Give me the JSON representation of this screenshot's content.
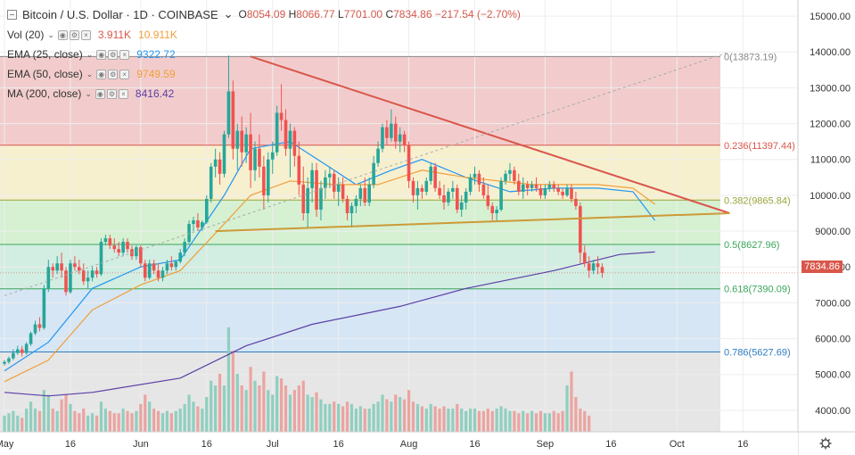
{
  "header": {
    "symbol": "Bitcoin / U.S. Dollar · 1D · COINBASE",
    "open_label": "O",
    "open": "8054.09",
    "high_label": "H",
    "high": "8066.77",
    "low_label": "L",
    "low": "7701.00",
    "close_label": "C",
    "close": "7834.86",
    "change": "−217.54 (−2.70%)"
  },
  "indicators": [
    {
      "name": "Vol (20)",
      "values": [
        "3.911K",
        "10.911K"
      ],
      "colors": [
        "#d9564a",
        "#f29e38"
      ]
    },
    {
      "name": "EMA (25, close)",
      "values": [
        "9322.72"
      ],
      "colors": [
        "#2196f3"
      ]
    },
    {
      "name": "EMA (50, close)",
      "values": [
        "9749.59"
      ],
      "colors": [
        "#f29e38"
      ]
    },
    {
      "name": "MA (200, close)",
      "values": [
        "8416.42"
      ],
      "colors": [
        "#5b3fa6"
      ]
    }
  ],
  "last_price": "7834.86",
  "chart_data": {
    "type": "candlestick",
    "price_axis_ticks": [
      "15000.00",
      "14000.00",
      "13000.00",
      "12000.00",
      "11000.00",
      "10000.00",
      "9000.00",
      "8000.00",
      "7000.00",
      "6000.00",
      "5000.00",
      "4000.00"
    ],
    "ylim": [
      3400,
      15450
    ],
    "time_axis_ticks": [
      {
        "label": "May",
        "day": 0
      },
      {
        "label": "16",
        "day": 15
      },
      {
        "label": "Jun",
        "day": 31
      },
      {
        "label": "16",
        "day": 46
      },
      {
        "label": "Jul",
        "day": 61
      },
      {
        "label": "16",
        "day": 76
      },
      {
        "label": "Aug",
        "day": 92
      },
      {
        "label": "16",
        "day": 107
      },
      {
        "label": "Sep",
        "day": 123
      },
      {
        "label": "16",
        "day": 138
      },
      {
        "label": "Oct",
        "day": 153
      },
      {
        "label": "16",
        "day": 168
      }
    ],
    "fib_levels": [
      {
        "ratio": "0",
        "price": 13873.19,
        "label": "0(13873.19)",
        "color": "#888888",
        "band": "#f2cccc"
      },
      {
        "ratio": "0.236",
        "price": 11397.44,
        "label": "0.236(11397.44)",
        "color": "#d9564a",
        "band": "#f6f0cf"
      },
      {
        "ratio": "0.382",
        "price": 9865.84,
        "label": "0.382(9865.84)",
        "color": "#9aa53b",
        "band": "#d6f0d2"
      },
      {
        "ratio": "0.5",
        "price": 8627.96,
        "label": "0.5(8627.96)",
        "color": "#3aa558",
        "band": "#d2ede2"
      },
      {
        "ratio": "0.618",
        "price": 7390.09,
        "label": "0.618(7390.09)",
        "color": "#3aa558",
        "band": "#d6e6f5"
      },
      {
        "ratio": "0.786",
        "price": 5627.69,
        "label": "0.786(5627.69)",
        "color": "#2f7dc1",
        "band": "#e6e6e6"
      }
    ],
    "trendlines": [
      {
        "name": "descending",
        "from": [
          56,
          13873
        ],
        "to": [
          165,
          9500
        ],
        "color": "#d9564a"
      },
      {
        "name": "ascending",
        "from": [
          48,
          9000
        ],
        "to": [
          165,
          9500
        ],
        "color": "#cc9a36"
      },
      {
        "name": "fib-diag",
        "from": [
          0,
          7200
        ],
        "to": [
          165,
          14000
        ],
        "color": "#aaaaaa"
      }
    ],
    "candles": [
      [
        5300,
        5400,
        5250,
        5350
      ],
      [
        5350,
        5500,
        5300,
        5450
      ],
      [
        5450,
        5700,
        5400,
        5600
      ],
      [
        5600,
        5800,
        5550,
        5700
      ],
      [
        5700,
        5800,
        5500,
        5600
      ],
      [
        5600,
        5900,
        5550,
        5850
      ],
      [
        5850,
        6200,
        5800,
        6150
      ],
      [
        6150,
        6500,
        6100,
        6400
      ],
      [
        6400,
        6600,
        6200,
        6300
      ],
      [
        6300,
        7500,
        6250,
        7400
      ],
      [
        7400,
        8200,
        7300,
        8000
      ],
      [
        8000,
        8100,
        7700,
        7900
      ],
      [
        7900,
        8300,
        7800,
        8100
      ],
      [
        8100,
        8400,
        7700,
        7900
      ],
      [
        7900,
        8000,
        7200,
        7300
      ],
      [
        7300,
        8200,
        7250,
        8100
      ],
      [
        8100,
        8300,
        7900,
        8000
      ],
      [
        8000,
        8200,
        7800,
        7900
      ],
      [
        7900,
        8100,
        7500,
        7600
      ],
      [
        7600,
        7900,
        7400,
        7700
      ],
      [
        7700,
        8000,
        7600,
        7900
      ],
      [
        7900,
        8000,
        7700,
        7800
      ],
      [
        7800,
        8800,
        7750,
        8700
      ],
      [
        8700,
        8900,
        8600,
        8800
      ],
      [
        8800,
        8900,
        8500,
        8600
      ],
      [
        8600,
        8800,
        8400,
        8500
      ],
      [
        8500,
        8700,
        8300,
        8400
      ],
      [
        8400,
        8800,
        8300,
        8700
      ],
      [
        8700,
        8800,
        8400,
        8500
      ],
      [
        8500,
        8600,
        8200,
        8300
      ],
      [
        8300,
        8600,
        8200,
        8550
      ],
      [
        8550,
        8600,
        8000,
        8100
      ],
      [
        8100,
        8200,
        7600,
        7700
      ],
      [
        7700,
        8200,
        7650,
        8100
      ],
      [
        8100,
        8200,
        7800,
        7900
      ],
      [
        7900,
        8100,
        7600,
        7700
      ],
      [
        7700,
        8000,
        7600,
        7900
      ],
      [
        7900,
        8200,
        7800,
        8100
      ],
      [
        8100,
        8300,
        7900,
        8000
      ],
      [
        8000,
        8200,
        7900,
        8150
      ],
      [
        8150,
        8500,
        8100,
        8400
      ],
      [
        8400,
        8800,
        8300,
        8700
      ],
      [
        8700,
        9300,
        8650,
        9200
      ],
      [
        9200,
        9400,
        9000,
        9300
      ],
      [
        9300,
        9500,
        9000,
        9100
      ],
      [
        9100,
        9300,
        9000,
        9250
      ],
      [
        9250,
        10000,
        9200,
        9900
      ],
      [
        9900,
        10900,
        9800,
        10800
      ],
      [
        10800,
        11300,
        10500,
        11000
      ],
      [
        11000,
        11200,
        10300,
        10600
      ],
      [
        10600,
        11800,
        10500,
        11700
      ],
      [
        11700,
        13900,
        11600,
        12900
      ],
      [
        12900,
        13200,
        11000,
        11300
      ],
      [
        11300,
        12000,
        10700,
        11800
      ],
      [
        11800,
        12200,
        10800,
        11200
      ],
      [
        11200,
        11900,
        10900,
        11700
      ],
      [
        11700,
        12300,
        10200,
        10700
      ],
      [
        10700,
        11500,
        10400,
        11300
      ],
      [
        11300,
        11700,
        10500,
        10800
      ],
      [
        10800,
        11100,
        9600,
        10000
      ],
      [
        10000,
        11200,
        9800,
        11000
      ],
      [
        11000,
        11500,
        10600,
        11200
      ],
      [
        11200,
        12500,
        11100,
        12300
      ],
      [
        12300,
        13100,
        11800,
        12100
      ],
      [
        12100,
        12400,
        11100,
        11300
      ],
      [
        11300,
        12000,
        10500,
        11800
      ],
      [
        11800,
        11900,
        10800,
        11100
      ],
      [
        11100,
        11500,
        10000,
        10300
      ],
      [
        10300,
        10800,
        9300,
        9500
      ],
      [
        9500,
        10500,
        9100,
        10200
      ],
      [
        10200,
        10900,
        9800,
        10700
      ],
      [
        10700,
        10900,
        9400,
        9600
      ],
      [
        9600,
        10400,
        9300,
        10200
      ],
      [
        10200,
        10700,
        9900,
        10500
      ],
      [
        10500,
        10800,
        10200,
        10600
      ],
      [
        10600,
        10700,
        9900,
        10100
      ],
      [
        10100,
        10500,
        9700,
        10300
      ],
      [
        10300,
        10500,
        9800,
        9900
      ],
      [
        9900,
        10000,
        9300,
        9500
      ],
      [
        9500,
        9800,
        9100,
        9700
      ],
      [
        9700,
        10000,
        9500,
        9900
      ],
      [
        9900,
        10300,
        9700,
        10200
      ],
      [
        10200,
        10500,
        9700,
        9800
      ],
      [
        9800,
        10500,
        9700,
        10300
      ],
      [
        10300,
        11100,
        10200,
        10900
      ],
      [
        10900,
        11500,
        10800,
        11300
      ],
      [
        11300,
        12000,
        11200,
        11900
      ],
      [
        11900,
        12100,
        11400,
        11600
      ],
      [
        11600,
        12400,
        11500,
        12000
      ],
      [
        12000,
        12200,
        11300,
        11500
      ],
      [
        11500,
        11900,
        11200,
        11700
      ],
      [
        11700,
        11800,
        11200,
        11400
      ],
      [
        11400,
        11500,
        10200,
        10400
      ],
      [
        10400,
        10500,
        9800,
        10000
      ],
      [
        10000,
        10400,
        9600,
        10200
      ],
      [
        10200,
        10300,
        9900,
        10100
      ],
      [
        10100,
        10500,
        10000,
        10400
      ],
      [
        10400,
        10900,
        10300,
        10800
      ],
      [
        10800,
        10900,
        10100,
        10200
      ],
      [
        10200,
        10400,
        9900,
        10000
      ],
      [
        10000,
        10300,
        9600,
        9800
      ],
      [
        9800,
        10200,
        9700,
        10100
      ],
      [
        10100,
        10400,
        9900,
        10200
      ],
      [
        10200,
        10300,
        9500,
        9600
      ],
      [
        9600,
        10000,
        9400,
        9800
      ],
      [
        9800,
        10200,
        9600,
        10100
      ],
      [
        10100,
        10600,
        10000,
        10500
      ],
      [
        10500,
        10800,
        10300,
        10600
      ],
      [
        10600,
        10700,
        10100,
        10300
      ],
      [
        10300,
        10500,
        9900,
        10000
      ],
      [
        10000,
        10300,
        9600,
        9700
      ],
      [
        9700,
        9800,
        9300,
        9500
      ],
      [
        9500,
        9700,
        9300,
        9600
      ],
      [
        9600,
        10500,
        9550,
        10400
      ],
      [
        10400,
        10700,
        10300,
        10600
      ],
      [
        10600,
        10900,
        10400,
        10700
      ],
      [
        10700,
        10800,
        10300,
        10400
      ],
      [
        10400,
        10600,
        10000,
        10100
      ],
      [
        10100,
        10500,
        9900,
        10300
      ],
      [
        10300,
        10400,
        10000,
        10200
      ],
      [
        10200,
        10400,
        10100,
        10300
      ],
      [
        10300,
        10500,
        10100,
        10200
      ],
      [
        10200,
        10300,
        9900,
        10000
      ],
      [
        10000,
        10300,
        9900,
        10200
      ],
      [
        10200,
        10400,
        10100,
        10300
      ],
      [
        10300,
        10400,
        10100,
        10200
      ],
      [
        10200,
        10300,
        10000,
        10100
      ],
      [
        10100,
        10200,
        9900,
        10000
      ],
      [
        10000,
        10300,
        9950,
        10200
      ],
      [
        10200,
        10300,
        9800,
        9900
      ],
      [
        9900,
        10100,
        9600,
        9700
      ],
      [
        9700,
        9800,
        8100,
        8400
      ],
      [
        8400,
        8600,
        8000,
        8100
      ],
      [
        8100,
        8300,
        7700,
        7900
      ],
      [
        7900,
        8200,
        7800,
        8100
      ],
      [
        8100,
        8300,
        7800,
        8000
      ],
      [
        8000,
        8100,
        7700,
        7834
      ]
    ],
    "ema25": [
      [
        0,
        5100
      ],
      [
        10,
        5900
      ],
      [
        20,
        7400
      ],
      [
        31,
        8000
      ],
      [
        40,
        8200
      ],
      [
        50,
        10000
      ],
      [
        56,
        11300
      ],
      [
        65,
        11500
      ],
      [
        75,
        10700
      ],
      [
        80,
        10300
      ],
      [
        88,
        10700
      ],
      [
        95,
        11000
      ],
      [
        105,
        10500
      ],
      [
        115,
        10100
      ],
      [
        125,
        10200
      ],
      [
        135,
        10200
      ],
      [
        143,
        10100
      ],
      [
        148,
        9300
      ]
    ],
    "ema50": [
      [
        0,
        4800
      ],
      [
        10,
        5400
      ],
      [
        20,
        6800
      ],
      [
        31,
        7500
      ],
      [
        40,
        7900
      ],
      [
        50,
        9200
      ],
      [
        56,
        10000
      ],
      [
        65,
        10400
      ],
      [
        75,
        10300
      ],
      [
        85,
        10300
      ],
      [
        95,
        10700
      ],
      [
        105,
        10500
      ],
      [
        120,
        10300
      ],
      [
        135,
        10300
      ],
      [
        143,
        10200
      ],
      [
        148,
        9750
      ]
    ],
    "ma200": [
      [
        0,
        4500
      ],
      [
        10,
        4400
      ],
      [
        20,
        4500
      ],
      [
        40,
        4900
      ],
      [
        55,
        5800
      ],
      [
        70,
        6400
      ],
      [
        90,
        6900
      ],
      [
        105,
        7400
      ],
      [
        125,
        7900
      ],
      [
        140,
        8350
      ],
      [
        148,
        8420
      ]
    ],
    "volume": [
      0.7,
      0.8,
      0.9,
      0.7,
      0.6,
      1.0,
      1.3,
      1.0,
      0.9,
      1.8,
      1.6,
      1.0,
      0.9,
      1.4,
      1.6,
      1.2,
      0.9,
      0.8,
      1.0,
      0.7,
      0.8,
      0.7,
      1.3,
      1.0,
      0.9,
      0.8,
      0.8,
      1.0,
      0.9,
      0.8,
      0.9,
      1.2,
      1.6,
      1.3,
      1.0,
      0.9,
      0.8,
      0.9,
      0.8,
      0.9,
      1.0,
      1.2,
      1.6,
      1.3,
      1.1,
      1.0,
      1.5,
      2.2,
      2.0,
      2.5,
      2.0,
      4.5,
      3.5,
      2.5,
      2.0,
      1.8,
      2.8,
      2.2,
      2.0,
      2.6,
      1.8,
      1.6,
      2.4,
      2.3,
      2.0,
      1.6,
      1.8,
      2.0,
      2.2,
      1.6,
      1.5,
      1.7,
      1.4,
      1.2,
      1.2,
      1.3,
      1.2,
      1.1,
      1.3,
      1.2,
      1.0,
      1.1,
      1.0,
      1.0,
      1.2,
      1.3,
      1.6,
      1.4,
      1.3,
      1.6,
      1.5,
      1.4,
      1.8,
      1.3,
      1.2,
      1.1,
      1.0,
      1.2,
      1.1,
      1.0,
      1.1,
      1.0,
      1.0,
      1.2,
      1.0,
      0.9,
      1.0,
      1.0,
      0.9,
      0.9,
      1.0,
      0.9,
      1.0,
      1.1,
      1.0,
      0.9,
      0.9,
      0.8,
      0.9,
      0.8,
      0.9,
      0.8,
      0.9,
      0.8,
      0.8,
      0.9,
      0.8,
      0.9,
      2.0,
      2.6,
      1.5,
      1.0,
      0.9,
      0.7
    ]
  }
}
